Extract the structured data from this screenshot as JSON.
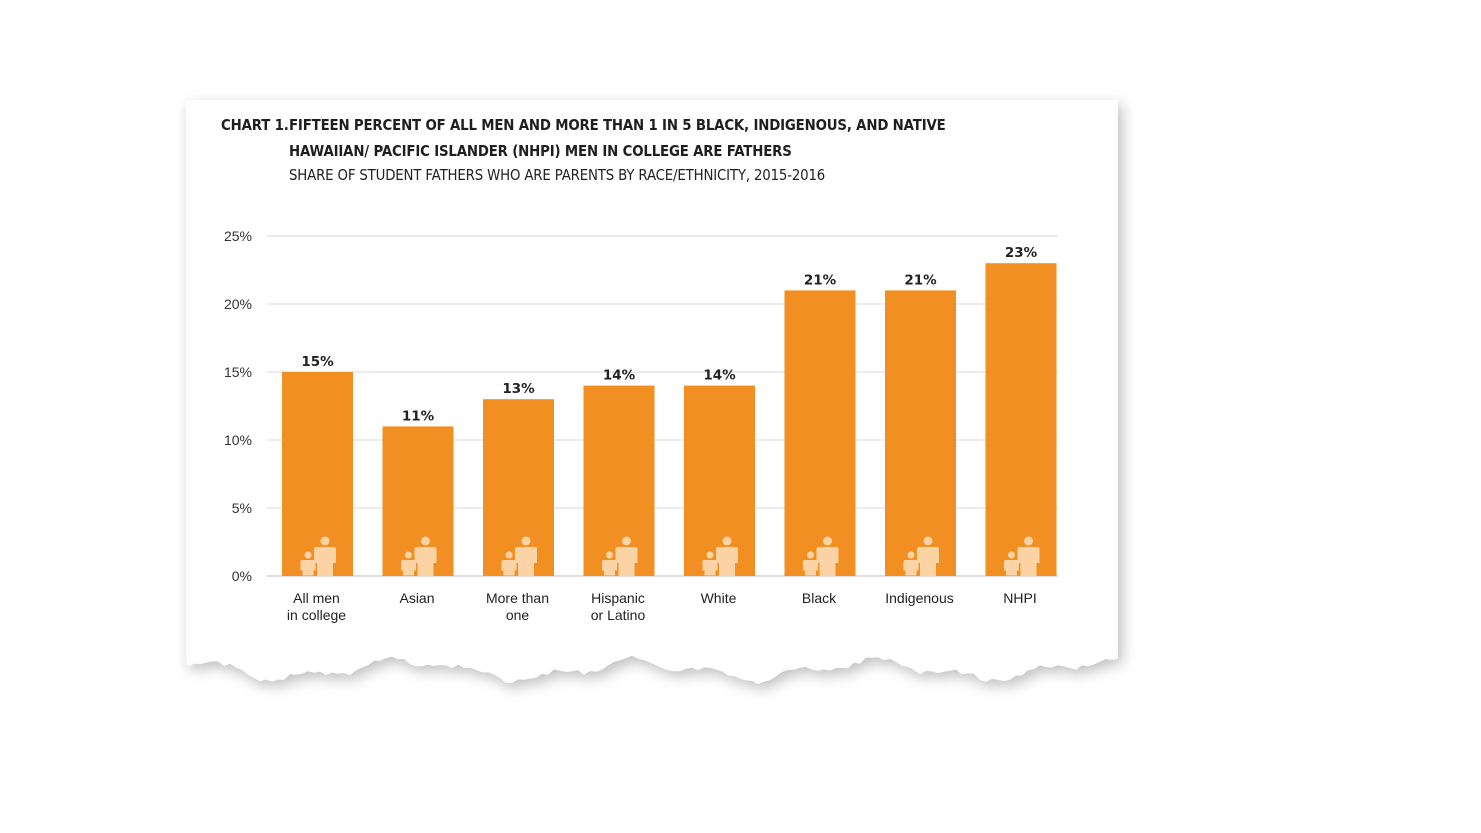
{
  "header": {
    "prefix": "CHART 1.",
    "title": "FIFTEEN PERCENT OF ALL MEN AND MORE THAN 1 IN 5 BLACK, INDIGENOUS, AND NATIVE HAWAIIAN/ PACIFIC ISLANDER (NHPI) MEN IN COLLEGE ARE FATHERS",
    "subtitle": "SHARE OF STUDENT FATHERS WHO ARE PARENTS BY RACE/ETHNICITY, 2015-2016"
  },
  "colors": {
    "bar": "#f28f22",
    "icon": "#fbd3a4",
    "grid": "#d9d9d9",
    "axis": "#bdbdbd"
  },
  "icons": {
    "bar_icon": "parent-child-icon"
  },
  "chart_data": {
    "type": "bar",
    "categories": [
      [
        "All men",
        "in college"
      ],
      [
        "Asian"
      ],
      [
        "More than",
        "one"
      ],
      [
        "Hispanic",
        "or Latino"
      ],
      [
        "White"
      ],
      [
        "Black"
      ],
      [
        "Indigenous"
      ],
      [
        "NHPI"
      ]
    ],
    "values": [
      15,
      11,
      13,
      14,
      14,
      21,
      21,
      23
    ],
    "value_labels": [
      "15%",
      "11%",
      "13%",
      "14%",
      "14%",
      "21%",
      "21%",
      "23%"
    ],
    "yticks": [
      0,
      5,
      10,
      15,
      20,
      25
    ],
    "ytick_labels": [
      "0%",
      "5%",
      "10%",
      "15%",
      "20%",
      "25%"
    ],
    "ylim": [
      0,
      25
    ],
    "grid": true,
    "legend": "none"
  }
}
